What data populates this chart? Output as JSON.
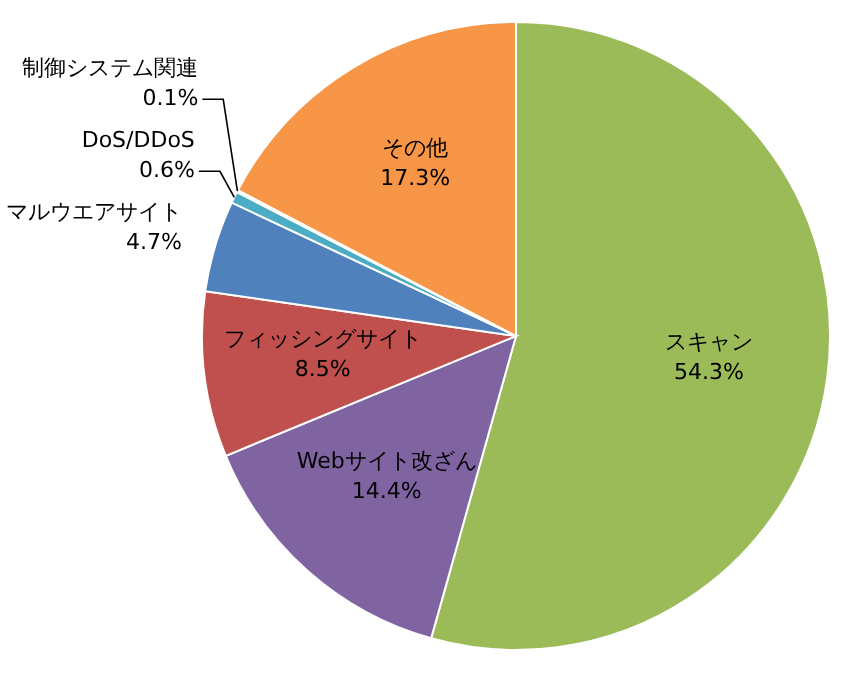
{
  "chart_data": {
    "type": "pie",
    "categories": [
      "スキャン",
      "Webサイト改ざん",
      "フィッシングサイト",
      "マルウエアサイト",
      "DoS/DDoS",
      "制御システム関連",
      "その他"
    ],
    "values": [
      54.3,
      14.4,
      8.5,
      4.7,
      0.6,
      0.1,
      17.3
    ],
    "value_labels": [
      "54.3%",
      "14.4%",
      "8.5%",
      "4.7%",
      "0.6%",
      "0.1%",
      "17.3%"
    ],
    "colors": [
      "#9bbb59",
      "#8064a2",
      "#c0504d",
      "#4f81bd",
      "#4bacc6",
      "#2c4d75",
      "#f79646"
    ]
  }
}
